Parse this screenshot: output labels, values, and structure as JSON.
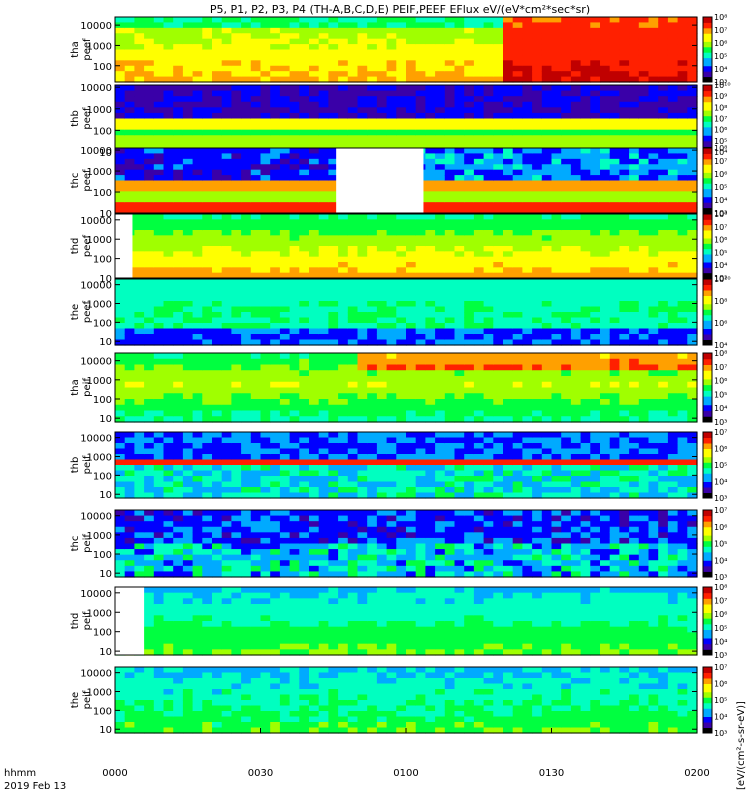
{
  "chart_data": {
    "type": "heatmap",
    "title": "P5, P1, P2, P3, P4 (TH-A,B,C,D,E) PEIF,PEEF EFlux eV/(eV*cm²*sec*sr)",
    "time_axis": {
      "label_line1": "hhmm",
      "label_line2": "2019 Feb 13",
      "ticks": [
        "0000",
        "0030",
        "0100",
        "0130",
        "0200"
      ],
      "range_minutes": [
        0,
        120
      ]
    },
    "colorbar_unit": "[eV/(cm²-s-sr-eV)]",
    "panels": [
      {
        "probe": "tha",
        "product": "peef",
        "yticks": [
          "100",
          "1000",
          "10000"
        ],
        "ylim_log10": [
          1.2,
          4.4
        ],
        "cbar_ticks": [
          "10³",
          "10⁴",
          "10⁵",
          "10⁶",
          "10⁷",
          "10⁸"
        ],
        "cbar_log_range": [
          3,
          8
        ]
      },
      {
        "probe": "thb",
        "product": "peef",
        "yticks": [
          "10",
          "100",
          "1000",
          "10000"
        ],
        "ylim_log10": [
          1,
          4.1
        ],
        "cbar_ticks": [
          "10⁴",
          "10⁵",
          "10⁶",
          "10⁷",
          "10⁸",
          "10⁹",
          "10¹⁰"
        ],
        "cbar_log_range": [
          4,
          10
        ]
      },
      {
        "probe": "thc",
        "product": "peef",
        "yticks": [
          "10",
          "100",
          "1000",
          "10000"
        ],
        "ylim_log10": [
          1,
          4.1
        ],
        "cbar_ticks": [
          "10³",
          "10⁴",
          "10⁵",
          "10⁶",
          "10⁷",
          "10⁸"
        ],
        "cbar_log_range": [
          3,
          8
        ]
      },
      {
        "probe": "thd",
        "product": "peef",
        "yticks": [
          "10",
          "100",
          "1000",
          "10000"
        ],
        "ylim_log10": [
          1,
          4.3
        ],
        "cbar_ticks": [
          "10³",
          "10⁴",
          "10⁵",
          "10⁶",
          "10⁷",
          "10⁸"
        ],
        "cbar_log_range": [
          3,
          8
        ]
      },
      {
        "probe": "the",
        "product": "peef",
        "yticks": [
          "10",
          "100",
          "1000",
          "10000"
        ],
        "ylim_log10": [
          0.8,
          4.3
        ],
        "cbar_ticks": [
          "10⁴",
          "10⁶",
          "10⁸",
          "10¹⁰"
        ],
        "cbar_log_range": [
          4,
          10
        ]
      },
      {
        "probe": "tha",
        "product": "peif",
        "yticks": [
          "10",
          "100",
          "1000",
          "10000"
        ],
        "ylim_log10": [
          0.8,
          4.4
        ],
        "cbar_ticks": [
          "10³",
          "10⁴",
          "10⁵",
          "10⁶",
          "10⁷",
          "10⁸"
        ],
        "cbar_log_range": [
          3,
          8
        ]
      },
      {
        "probe": "thb",
        "product": "peif",
        "yticks": [
          "10",
          "100",
          "1000",
          "10000"
        ],
        "ylim_log10": [
          0.8,
          4.3
        ],
        "cbar_ticks": [
          "10³",
          "10⁴",
          "10⁵",
          "10⁶",
          "10⁷"
        ],
        "cbar_log_range": [
          3,
          7
        ]
      },
      {
        "probe": "thc",
        "product": "peif",
        "yticks": [
          "10",
          "100",
          "1000",
          "10000"
        ],
        "ylim_log10": [
          0.8,
          4.3
        ],
        "cbar_ticks": [
          "10³",
          "10⁴",
          "10⁵",
          "10⁶",
          "10⁷"
        ],
        "cbar_log_range": [
          3,
          7
        ]
      },
      {
        "probe": "thd",
        "product": "peif",
        "yticks": [
          "10",
          "100",
          "1000",
          "10000"
        ],
        "ylim_log10": [
          0.8,
          4.3
        ],
        "cbar_ticks": [
          "10³",
          "10⁴",
          "10⁵",
          "10⁶",
          "10⁷",
          "10⁸"
        ],
        "cbar_log_range": [
          3,
          8
        ]
      },
      {
        "probe": "the",
        "product": "peif",
        "yticks": [
          "10",
          "100",
          "1000",
          "10000"
        ],
        "ylim_log10": [
          0.8,
          4.3
        ],
        "cbar_ticks": [
          "10³",
          "10⁴",
          "10⁵",
          "10⁶",
          "10⁷"
        ],
        "cbar_log_range": [
          3,
          7
        ]
      }
    ],
    "colormap": [
      "#000000",
      "#3a00a8",
      "#0000ff",
      "#00aaff",
      "#00ffc0",
      "#00ff40",
      "#a0ff00",
      "#ffff00",
      "#ffa000",
      "#ff2000",
      "#c00000"
    ],
    "grid": false,
    "legend": "colorbars at right of each panel"
  }
}
